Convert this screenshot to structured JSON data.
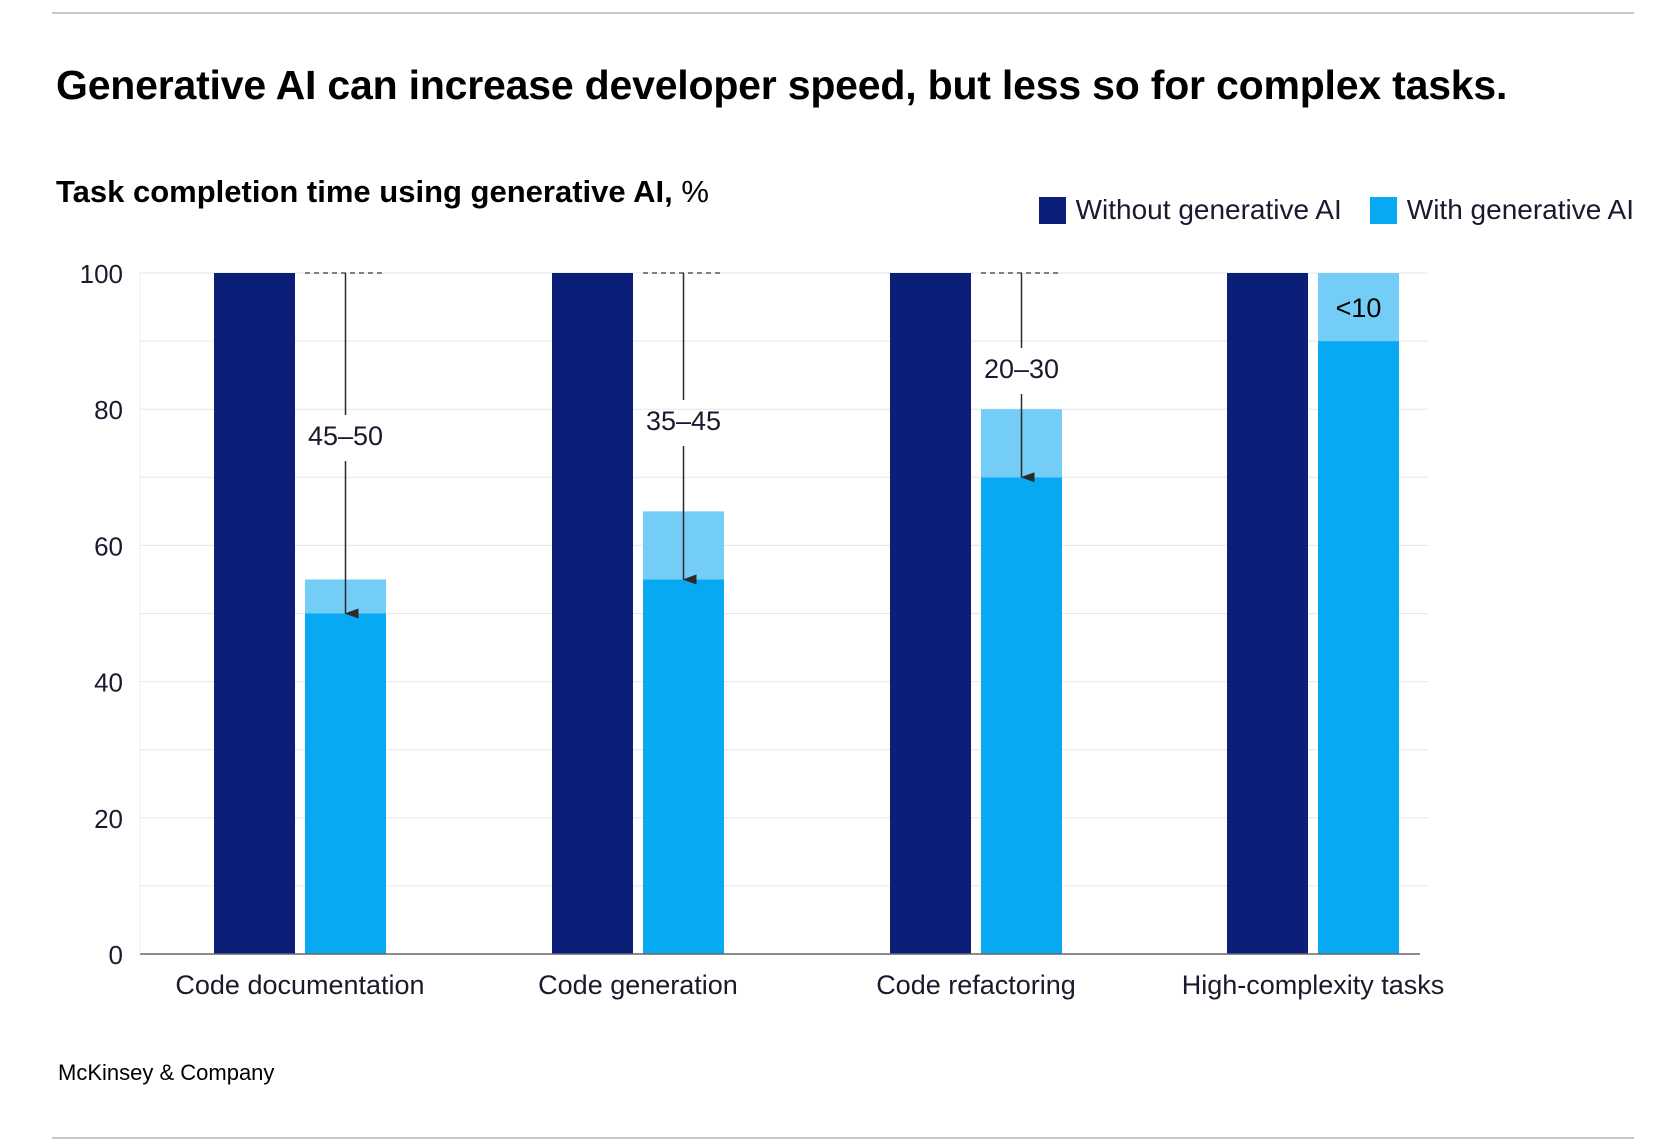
{
  "title": "Generative AI can increase developer speed, but less so for complex tasks.",
  "subtitle": {
    "main": "Task completion time using generative AI,",
    "unit": "%"
  },
  "source": "McKinsey & Company",
  "colors": {
    "without": "#0b1f78",
    "with": "#06a9f2",
    "range": "#74cdf6",
    "text": "#000000"
  },
  "chart_data": {
    "type": "bar",
    "title": "Task completion time using generative AI, %",
    "xlabel": "",
    "ylabel": "",
    "ylim": [
      0,
      100
    ],
    "yticks": [
      0,
      20,
      40,
      60,
      80,
      100
    ],
    "grid": true,
    "legend_position": "top-right",
    "categories": [
      "Code documentation",
      "Code generation",
      "Code refactoring",
      "High-complexity tasks"
    ],
    "series": [
      {
        "name": "Without generative AI",
        "values": [
          100,
          100,
          100,
          100
        ]
      },
      {
        "name": "With generative AI",
        "values_low": [
          50,
          55,
          70,
          90
        ],
        "values_high": [
          55,
          65,
          80,
          100
        ]
      }
    ],
    "annotations": [
      "45–50",
      "35–45",
      "20–30",
      "<10"
    ]
  }
}
